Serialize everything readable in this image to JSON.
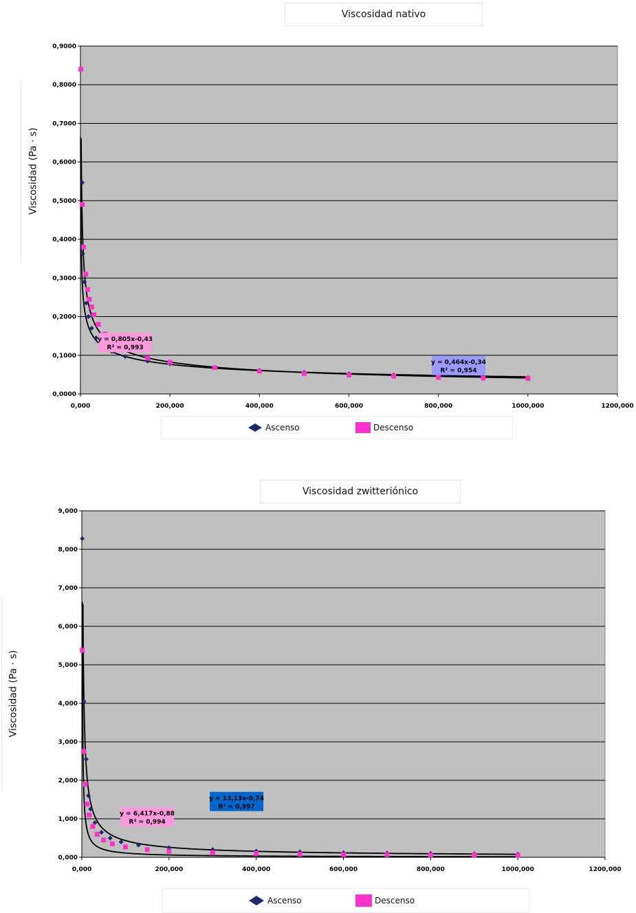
{
  "chart_data": [
    {
      "type": "scatter",
      "title": "Viscosidad nativo",
      "xlabel": "",
      "ylabel": "Viscosidad (Pa · s)",
      "xlim": [
        0,
        1200
      ],
      "ylim": [
        0,
        0.9
      ],
      "x_ticks": [
        "0,000",
        "200,000",
        "400,000",
        "600,000",
        "800,000",
        "1000,000",
        "1200,000"
      ],
      "y_ticks": [
        "0,0000",
        "0,1000",
        "0,2000",
        "0,3000",
        "0,4000",
        "0,5000",
        "0,6000",
        "0,7000",
        "0,8000",
        "0,9000"
      ],
      "grid": "horizontal",
      "legend_position": "bottom",
      "series": [
        {
          "name": "Ascenso",
          "marker": "diamond",
          "color": "#1f2a6b",
          "x": [
            4,
            5,
            9,
            13,
            18,
            25,
            35,
            50,
            70,
            100,
            150,
            200,
            300,
            400,
            500,
            600,
            700,
            800,
            900,
            1000
          ],
          "y": [
            0.547,
            0.363,
            0.29,
            0.235,
            0.2,
            0.17,
            0.145,
            0.125,
            0.11,
            0.097,
            0.085,
            0.078,
            0.068,
            0.061,
            0.056,
            0.052,
            0.049,
            0.046,
            0.044,
            0.042
          ],
          "trendline": {
            "a": 0.464,
            "b": -0.34
          }
        },
        {
          "name": "Descenso",
          "marker": "square",
          "color": "#ff33cc",
          "x": [
            1,
            4,
            7,
            12,
            16,
            20,
            25,
            30,
            40,
            55,
            75,
            100,
            150,
            200,
            300,
            400,
            500,
            600,
            700,
            800,
            900,
            1000
          ],
          "y": [
            0.84,
            0.49,
            0.38,
            0.31,
            0.27,
            0.245,
            0.225,
            0.205,
            0.18,
            0.155,
            0.13,
            0.115,
            0.093,
            0.082,
            0.068,
            0.059,
            0.053,
            0.049,
            0.046,
            0.043,
            0.041,
            0.04
          ],
          "trendline": {
            "a": 0.805,
            "b": -0.43
          }
        }
      ],
      "annotations": [
        {
          "text": "y = 0,805x-0,43",
          "r2": "R² = 0,993",
          "color": "#ff99dd",
          "x": 100,
          "y": 0.133
        },
        {
          "text": "y = 0,464x-0,34",
          "r2": "R² = 0,954",
          "color": "#9999ff",
          "x": 845,
          "y": 0.0735
        }
      ]
    },
    {
      "type": "scatter",
      "title": "Viscosidad zwitteriónico",
      "xlabel": "",
      "ylabel": "Viscosidad (Pa · s)",
      "xlim": [
        0,
        1200
      ],
      "ylim": [
        0,
        9
      ],
      "x_ticks": [
        "0,000",
        "200,000",
        "400,000",
        "600,000",
        "800,000",
        "1000,000",
        "1200,000"
      ],
      "y_ticks": [
        "0,000",
        "1,000",
        "2,000",
        "3,000",
        "4,000",
        "5,000",
        "6,000",
        "7,000",
        "8,000",
        "9,000"
      ],
      "grid": "horizontal",
      "legend_position": "bottom",
      "series": [
        {
          "name": "Ascenso",
          "marker": "diamond",
          "color": "#1f2a6b",
          "x": [
            1,
            5,
            10,
            15,
            20,
            30,
            45,
            65,
            90,
            130,
            200,
            300,
            400,
            500,
            600,
            700,
            800,
            900,
            1000
          ],
          "y": [
            8.28,
            4.05,
            2.55,
            1.6,
            1.25,
            0.9,
            0.65,
            0.5,
            0.4,
            0.32,
            0.25,
            0.2,
            0.16,
            0.14,
            0.12,
            0.11,
            0.1,
            0.09,
            0.08
          ],
          "trendline": {
            "a": 13.13,
            "b": -0.74
          }
        },
        {
          "name": "Descenso",
          "marker": "square",
          "color": "#ff33cc",
          "x": [
            1,
            4,
            8,
            12,
            17,
            25,
            35,
            50,
            70,
            100,
            150,
            200,
            300,
            400,
            500,
            600,
            700,
            800,
            900,
            1000
          ],
          "y": [
            5.38,
            2.75,
            1.9,
            1.38,
            1.1,
            0.8,
            0.6,
            0.45,
            0.35,
            0.27,
            0.2,
            0.16,
            0.12,
            0.1,
            0.08,
            0.07,
            0.07,
            0.06,
            0.06,
            0.05
          ],
          "trendline": {
            "a": 6.417,
            "b": -0.88
          }
        }
      ],
      "annotations": [
        {
          "text": "y = 6,417x-0,88",
          "r2": "R² = 0,994",
          "color": "#ff99dd",
          "x": 150,
          "y": 1.05
        },
        {
          "text": "y = 13,13x-0,74",
          "r2": "R² = 0,997",
          "color": "#0066cc",
          "x": 355,
          "y": 1.45
        }
      ]
    }
  ]
}
